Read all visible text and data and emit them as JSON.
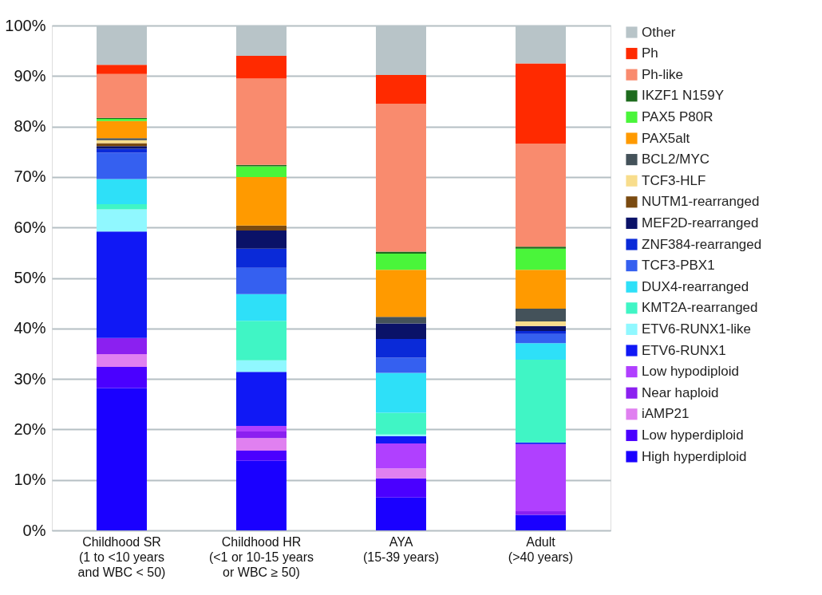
{
  "chart_data": {
    "type": "bar",
    "stacked": true,
    "legend": "right",
    "grid": "y",
    "categories": [
      "Childhood SR\n(1 to <10 years\nand WBC < 50)",
      "Childhood HR\n(<1 or 10-15 years\nor WBC ≥ 50)",
      "AYA\n(15-39 years)",
      "Adult\n(>40 years)"
    ],
    "ylim": [
      0,
      100
    ],
    "yticks": [
      {
        "value": 0,
        "label": "0%"
      },
      {
        "value": 10,
        "label": "10%"
      },
      {
        "value": 20,
        "label": "20%"
      },
      {
        "value": 30,
        "label": "30%"
      },
      {
        "value": 40,
        "label": "40%"
      },
      {
        "value": 50,
        "label": "50%"
      },
      {
        "value": 60,
        "label": "60%"
      },
      {
        "value": 70,
        "label": "70%"
      },
      {
        "value": 80,
        "label": "80%"
      },
      {
        "value": 90,
        "label": "90%"
      },
      {
        "value": 100,
        "label": "100%"
      }
    ],
    "series": [
      {
        "name": "High hyperdiploid",
        "color": "#1a00ff",
        "values": [
          28.2,
          13.8,
          6.5,
          3.1
        ]
      },
      {
        "name": "Low hyperdiploid",
        "color": "#4a00ff",
        "values": [
          4.2,
          2.0,
          3.8,
          0
        ]
      },
      {
        "name": "iAMP21",
        "color": "#e080f0",
        "values": [
          2.5,
          2.5,
          2.0,
          0
        ]
      },
      {
        "name": "Near haploid",
        "color": "#8b20f0",
        "values": [
          3.2,
          1.3,
          0,
          0.7
        ]
      },
      {
        "name": "Low hypodiploid",
        "color": "#b040ff",
        "values": [
          0,
          1.1,
          4.9,
          13.3
        ]
      },
      {
        "name": "ETV6-RUNX1",
        "color": "#1018f5",
        "values": [
          21.1,
          10.7,
          1.5,
          0.3
        ]
      },
      {
        "name": "ETV6-RUNX1-like",
        "color": "#90f8ff",
        "values": [
          4.4,
          2.3,
          0.3,
          0
        ]
      },
      {
        "name": "KMT2A-rearranged",
        "color": "#40f5c5",
        "values": [
          1.0,
          7.8,
          4.3,
          16.4
        ]
      },
      {
        "name": "DUX4-rearranged",
        "color": "#2ee0f8",
        "values": [
          5.0,
          5.3,
          7.9,
          3.3
        ]
      },
      {
        "name": "TCF3-PBX1",
        "color": "#3560f0",
        "values": [
          5.2,
          5.2,
          3.0,
          1.8
        ]
      },
      {
        "name": "ZNF384-rearranged",
        "color": "#0a2ad8",
        "values": [
          0.8,
          3.8,
          3.7,
          0.6
        ]
      },
      {
        "name": "MEF2D-rearranged",
        "color": "#0a1268",
        "values": [
          0.5,
          3.6,
          3.1,
          1.0
        ]
      },
      {
        "name": "NUTM1-rearranged",
        "color": "#7a4a10",
        "values": [
          0.6,
          1.0,
          0,
          0
        ]
      },
      {
        "name": "TCF3-HLF",
        "color": "#f8dd8c",
        "values": [
          0.6,
          0,
          0,
          0.9
        ]
      },
      {
        "name": "BCL2/MYC",
        "color": "#44525a",
        "values": [
          0.4,
          0,
          1.3,
          2.5
        ]
      },
      {
        "name": "PAX5alt",
        "color": "#ff9a00",
        "values": [
          3.4,
          9.6,
          9.3,
          7.7
        ]
      },
      {
        "name": "PAX5 P80R",
        "color": "#4af53a",
        "values": [
          0.4,
          2.1,
          3.2,
          4.2
        ]
      },
      {
        "name": "IKZF1 N159Y",
        "color": "#1d6b1d",
        "values": [
          0.2,
          0.3,
          0.4,
          0.4
        ]
      },
      {
        "name": "Ph-like",
        "color": "#f98b6e",
        "values": [
          8.7,
          17.1,
          29.3,
          20.4
        ]
      },
      {
        "name": "Ph",
        "color": "#ff2a00",
        "values": [
          1.8,
          4.5,
          5.7,
          15.9
        ]
      },
      {
        "name": "Other",
        "color": "#b8c4c8",
        "values": [
          7.8,
          6.0,
          9.8,
          7.5
        ]
      }
    ]
  }
}
